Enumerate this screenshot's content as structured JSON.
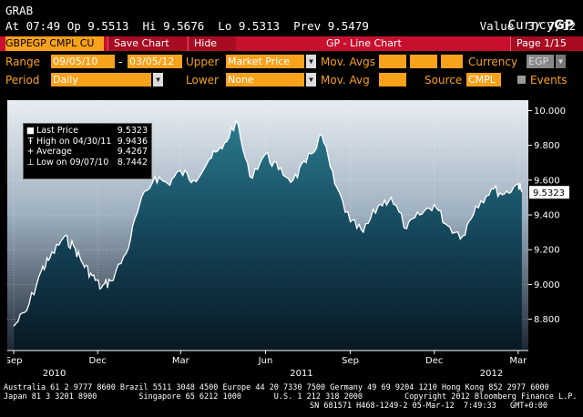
{
  "header": {
    "left_title": "GRAB",
    "right_title": "Curncy",
    "right_brand": "GP",
    "quote_line": "At 07:49 Op 9.5513  Hi 9.5676  Lo 9.5313  Prev 9.5479",
    "value_line": "Value  3/ 7/12"
  },
  "redbar": {
    "ticker": "GBPEGP CMPL CU",
    "save_chart": "Save Chart",
    "hide": "Hide",
    "title": "GP - Line Chart",
    "page": "Page 1/15"
  },
  "params": {
    "range_label": "Range",
    "range_from": "09/05/10",
    "range_sep": "-",
    "range_to": "03/05/12",
    "upper_label": "Upper",
    "upper_value": "Market Price",
    "mov_avgs_label": "Mov. Avgs",
    "currency_label": "Currency",
    "currency_value": "EGP",
    "period_label": "Period",
    "period_value": "Daily",
    "lower_label": "Lower",
    "lower_value": "None",
    "mov_avg_label": "Mov. Avg",
    "source_label": "Source",
    "source_value": "CMPL",
    "events_label": "Events"
  },
  "legend": {
    "last_price_label": "Last Price",
    "last_price_value": "9.5323",
    "high_label": "High on 04/30/11",
    "high_value": "9.9436",
    "average_label": "Average",
    "average_value": "9.4267",
    "low_label": "Low on 09/07/10",
    "low_value": "8.7442"
  },
  "chart_data": {
    "type": "area",
    "series": [
      {
        "name": "Last Price",
        "values": [
          [
            "2010-09-01",
            8.76
          ],
          [
            "2010-09-15",
            8.85
          ],
          [
            "2010-10-01",
            9.08
          ],
          [
            "2010-10-10",
            9.15
          ],
          [
            "2010-10-25",
            9.27
          ],
          [
            "2010-11-05",
            9.22
          ],
          [
            "2010-11-15",
            9.12
          ],
          [
            "2010-11-25",
            9.05
          ],
          [
            "2010-12-05",
            8.98
          ],
          [
            "2010-12-15",
            9.02
          ],
          [
            "2011-01-01",
            9.18
          ],
          [
            "2011-01-15",
            9.45
          ],
          [
            "2011-02-01",
            9.62
          ],
          [
            "2011-02-15",
            9.58
          ],
          [
            "2011-03-01",
            9.65
          ],
          [
            "2011-03-15",
            9.6
          ],
          [
            "2011-04-01",
            9.72
          ],
          [
            "2011-04-15",
            9.78
          ],
          [
            "2011-04-30",
            9.94
          ],
          [
            "2011-05-15",
            9.62
          ],
          [
            "2011-06-01",
            9.75
          ],
          [
            "2011-06-15",
            9.66
          ],
          [
            "2011-07-01",
            9.6
          ],
          [
            "2011-07-15",
            9.7
          ],
          [
            "2011-08-01",
            9.86
          ],
          [
            "2011-08-15",
            9.58
          ],
          [
            "2011-09-01",
            9.36
          ],
          [
            "2011-09-15",
            9.3
          ],
          [
            "2011-10-01",
            9.45
          ],
          [
            "2011-10-15",
            9.5
          ],
          [
            "2011-11-01",
            9.32
          ],
          [
            "2011-11-15",
            9.4
          ],
          [
            "2011-12-01",
            9.46
          ],
          [
            "2011-12-15",
            9.34
          ],
          [
            "2012-01-01",
            9.28
          ],
          [
            "2012-01-15",
            9.45
          ],
          [
            "2012-02-01",
            9.55
          ],
          [
            "2012-02-15",
            9.52
          ],
          [
            "2012-03-01",
            9.58
          ],
          [
            "2012-03-05",
            9.53
          ]
        ]
      }
    ],
    "xlabel": "",
    "ylabel": "",
    "ylim": [
      8.62,
      10.06
    ],
    "xlim": [
      "2010-08-25",
      "2012-03-12"
    ],
    "y_ticks": [
      "8.800",
      "9.000",
      "9.200",
      "9.400",
      "9.600",
      "9.800",
      "10.000"
    ],
    "x_ticks": [
      [
        "2010-09-01",
        "Sep"
      ],
      [
        "2010-12-01",
        "Dec"
      ],
      [
        "2011-03-01",
        "Mar"
      ],
      [
        "2011-06-01",
        "Jun"
      ],
      [
        "2011-09-01",
        "Sep"
      ],
      [
        "2011-12-01",
        "Dec"
      ],
      [
        "2012-03-01",
        "Mar"
      ]
    ],
    "year_labels": [
      [
        "2010-10-15",
        "2010"
      ],
      [
        "2011-07-10",
        "2011"
      ],
      [
        "2012-02-01",
        "2012"
      ]
    ],
    "last_label": "9.5323",
    "grid": true,
    "legend_position": "top-left"
  },
  "footer": {
    "line1": "Australia 61 2 9777 8600 Brazil 5511 3048 4500 Europe 44 20 7330 7500 Germany 49 69 9204 1210 Hong Kong 852 2977 6000",
    "line2": "Japan 81 3 3201 8900         Singapore 65 6212 1000       U.S. 1 212 318 2000         Copyright 2012 Bloomberg Finance L.P.",
    "line3": "SN 681571 H468-1249-2 05-Mar-12  7:49:33   GMT+0:00"
  }
}
